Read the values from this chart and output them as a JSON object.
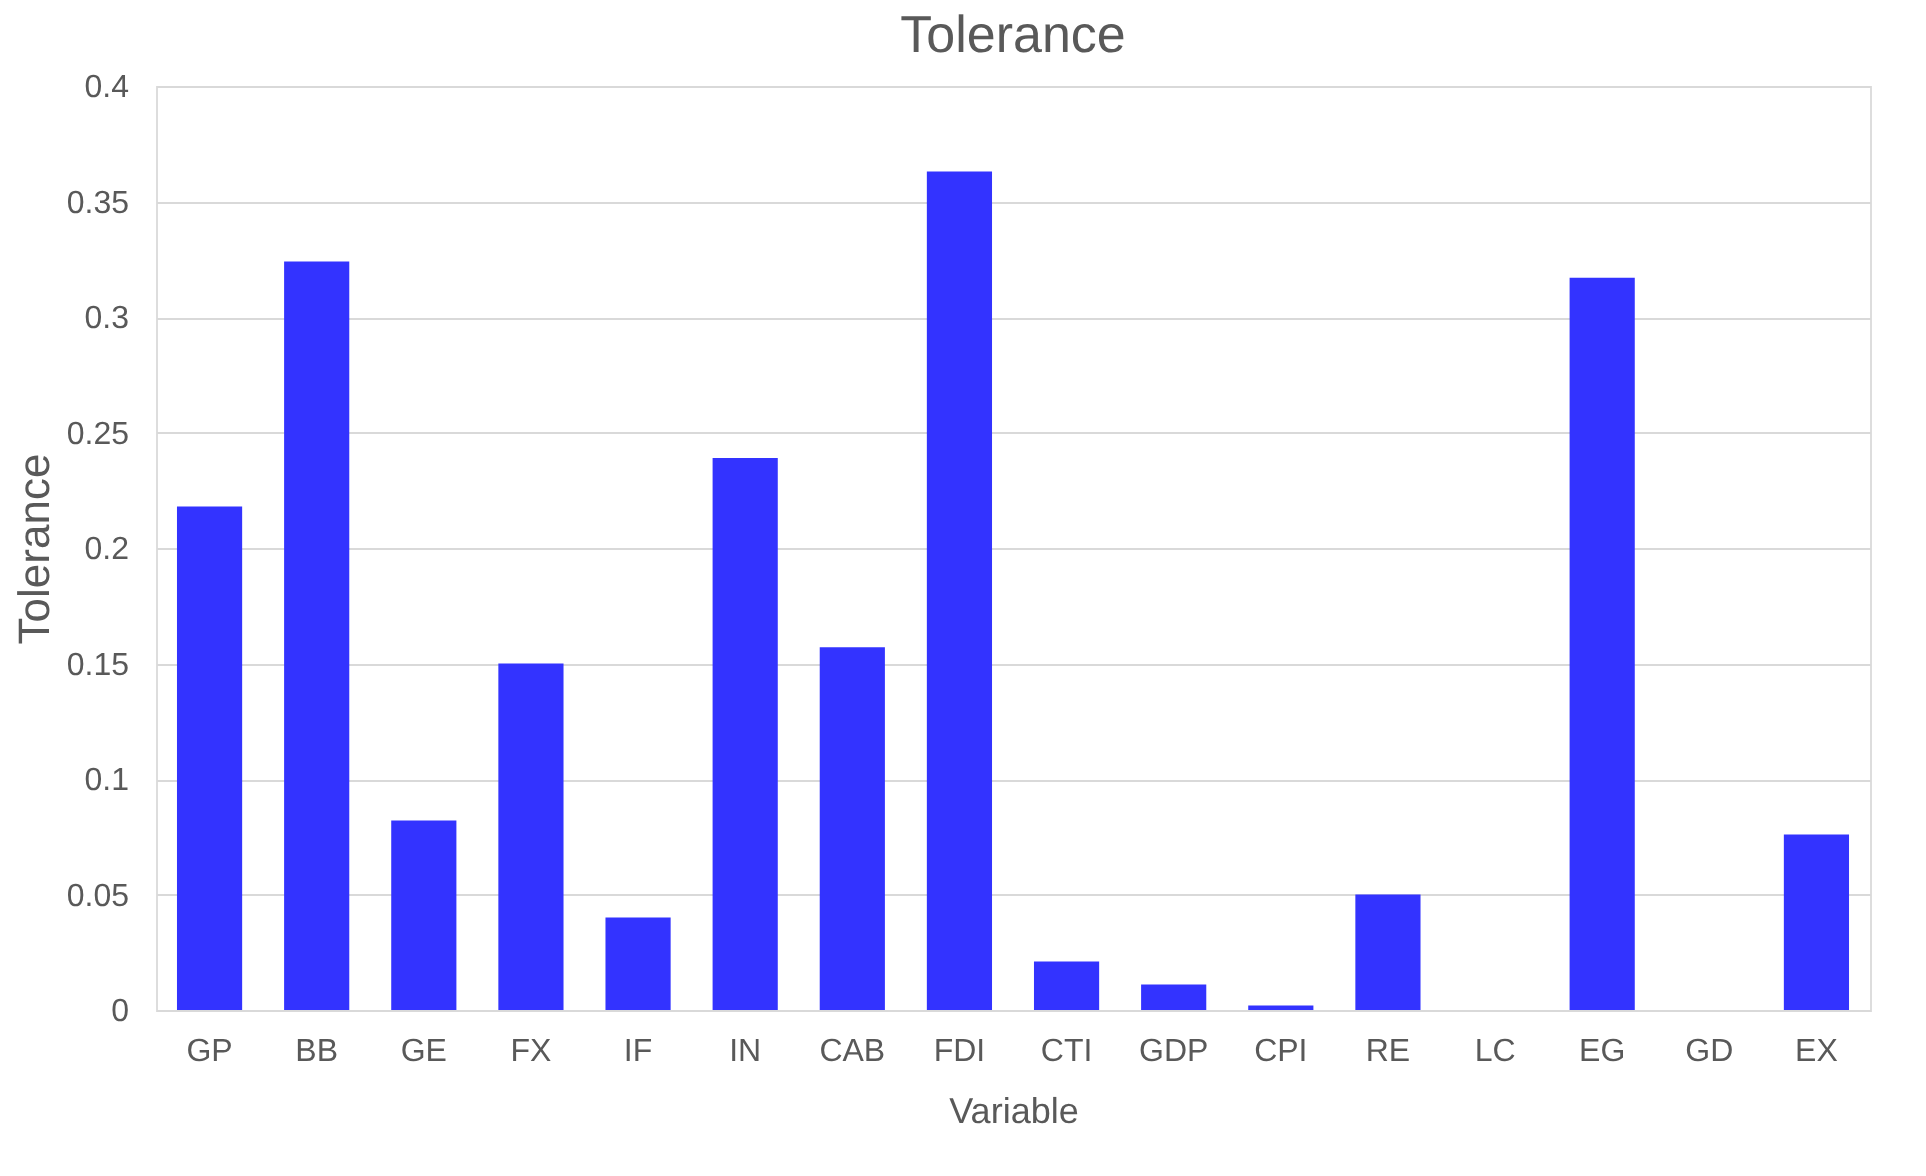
{
  "chart_data": {
    "type": "bar",
    "title": "Tolerance",
    "xlabel": "Variable",
    "ylabel": "Tolerance",
    "categories": [
      "GP",
      "BB",
      "GE",
      "FX",
      "IF",
      "IN",
      "CAB",
      "FDI",
      "CTI",
      "GDP",
      "CPI",
      "RE",
      "LC",
      "EG",
      "GD",
      "EX"
    ],
    "values": [
      0.218,
      0.324,
      0.082,
      0.15,
      0.04,
      0.239,
      0.157,
      0.363,
      0.021,
      0.011,
      0.002,
      0.05,
      0,
      0.317,
      0,
      0.076
    ],
    "color": "#3333ff",
    "ylim": [
      0,
      0.4
    ],
    "yticks": [
      0,
      0.05,
      0.1,
      0.15,
      0.2,
      0.25,
      0.3,
      0.35,
      0.4
    ],
    "grid": "y"
  }
}
